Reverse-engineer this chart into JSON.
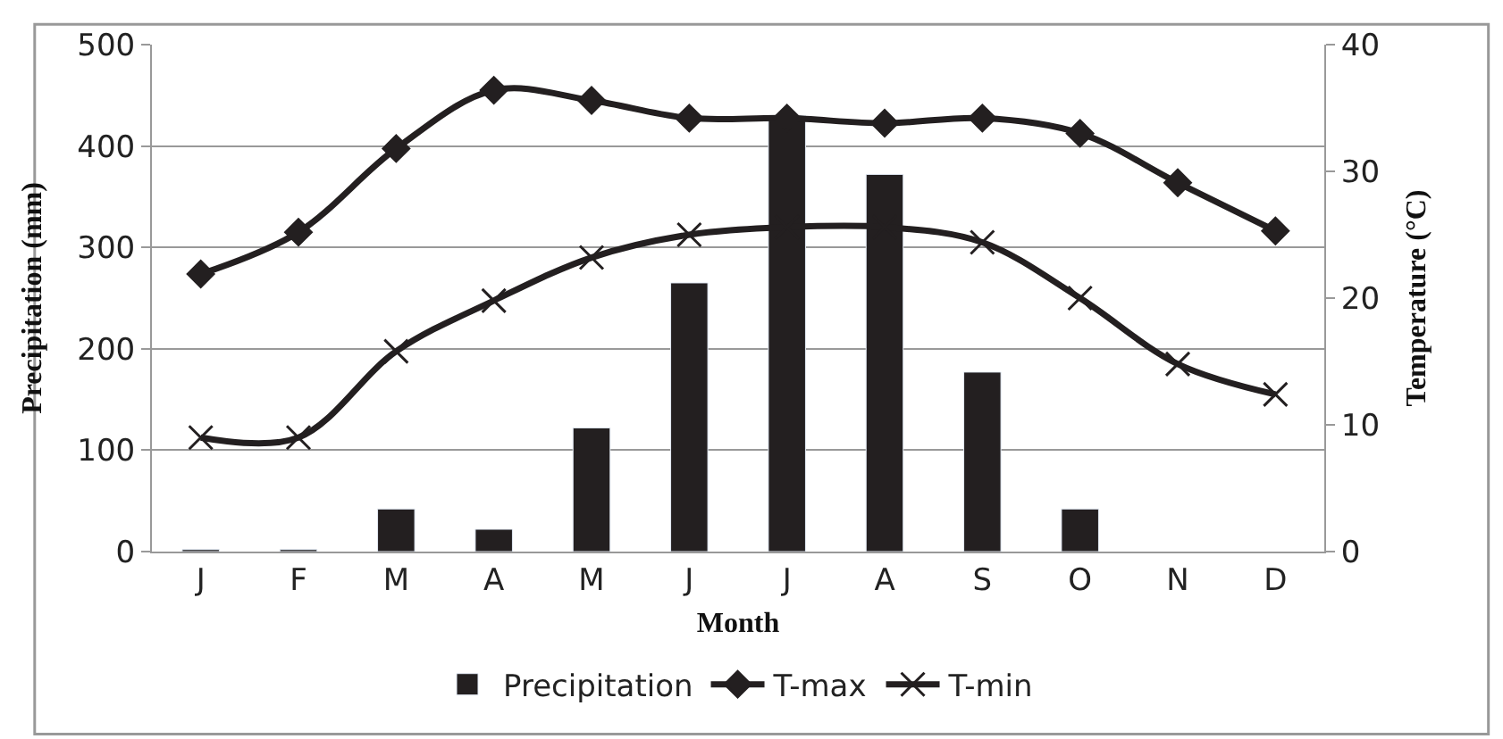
{
  "chart_data": {
    "type": "bar",
    "xlabel": "Month",
    "ylabel": "Precipitation (mm)",
    "y2label": "Temperature (°C)",
    "categories": [
      "J",
      "F",
      "M",
      "A",
      "M",
      "J",
      "J",
      "A",
      "S",
      "O",
      "N",
      "D"
    ],
    "series": [
      {
        "name": "Precipitation",
        "color": "#231f20",
        "values": [
          2,
          2,
          42,
          22,
          122,
          265,
          430,
          372,
          177,
          42,
          null,
          null
        ]
      },
      {
        "name": "T-max",
        "type": "line",
        "axis": "y2",
        "color": "#231f20",
        "marker": "diamond",
        "values": [
          21.9,
          25.2,
          31.8,
          36.4,
          35.6,
          34.2,
          34.2,
          33.8,
          34.2,
          33.0,
          29.1,
          25.3
        ]
      },
      {
        "name": "T-min",
        "type": "line",
        "axis": "y2",
        "color": "#231f20",
        "marker": "cross",
        "values": [
          9.0,
          9.0,
          15.8,
          19.8,
          23.2,
          25.0,
          25.6,
          25.6,
          24.4,
          20.0,
          14.8,
          12.4
        ]
      }
    ],
    "ylim": [
      0,
      500
    ],
    "yticks": [
      0,
      100,
      200,
      300,
      400,
      500
    ],
    "y2lim": [
      0,
      40
    ],
    "y2ticks": [
      0,
      10,
      20,
      30,
      40
    ],
    "grid": "y",
    "legend": "bottom"
  }
}
